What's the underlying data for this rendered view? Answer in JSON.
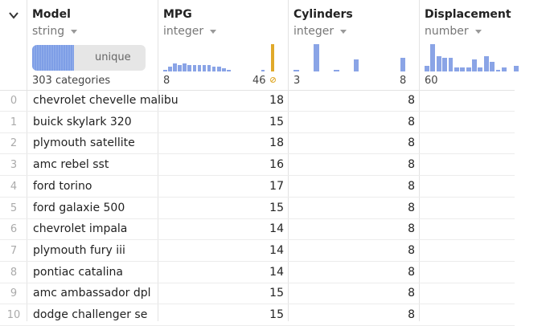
{
  "columns": {
    "model": {
      "name": "Model",
      "type": "string",
      "unique_label": "unique",
      "unique_fraction": 0.37,
      "categories": "303 categories"
    },
    "mpg": {
      "name": "MPG",
      "type": "integer",
      "min": "8",
      "max": "46",
      "histogram": [
        1,
        3,
        5,
        4,
        5,
        4,
        4,
        4,
        4,
        4,
        3,
        3,
        2,
        1,
        0,
        0,
        0,
        0,
        0,
        0,
        1,
        0,
        17
      ],
      "highlight_last": true
    },
    "cylinders": {
      "name": "Cylinders",
      "type": "integer",
      "min": "3",
      "max": "8",
      "histogram": [
        1,
        0,
        0,
        14,
        0,
        0,
        1,
        0,
        0,
        6,
        0,
        0,
        0,
        0,
        0,
        0,
        7
      ]
    },
    "displacement": {
      "name": "Displacement",
      "type": "number",
      "min": "60",
      "histogram": [
        3,
        14,
        8,
        7,
        7,
        2,
        2,
        2,
        6,
        2,
        8,
        5,
        1,
        2,
        0,
        3
      ]
    }
  },
  "rows": [
    {
      "idx": "0",
      "model": "chevrolet chevelle malibu",
      "mpg": "18",
      "cyl": "8"
    },
    {
      "idx": "1",
      "model": "buick skylark 320",
      "mpg": "15",
      "cyl": "8"
    },
    {
      "idx": "2",
      "model": "plymouth satellite",
      "mpg": "18",
      "cyl": "8"
    },
    {
      "idx": "3",
      "model": "amc rebel sst",
      "mpg": "16",
      "cyl": "8"
    },
    {
      "idx": "4",
      "model": "ford torino",
      "mpg": "17",
      "cyl": "8"
    },
    {
      "idx": "5",
      "model": "ford galaxie 500",
      "mpg": "15",
      "cyl": "8"
    },
    {
      "idx": "6",
      "model": "chevrolet impala",
      "mpg": "14",
      "cyl": "8"
    },
    {
      "idx": "7",
      "model": "plymouth fury iii",
      "mpg": "14",
      "cyl": "8"
    },
    {
      "idx": "8",
      "model": "pontiac catalina",
      "mpg": "14",
      "cyl": "8"
    },
    {
      "idx": "9",
      "model": "amc ambassador dpl",
      "mpg": "15",
      "cyl": "8"
    },
    {
      "idx": "10",
      "model": "dodge challenger se",
      "mpg": "15",
      "cyl": "8"
    }
  ]
}
